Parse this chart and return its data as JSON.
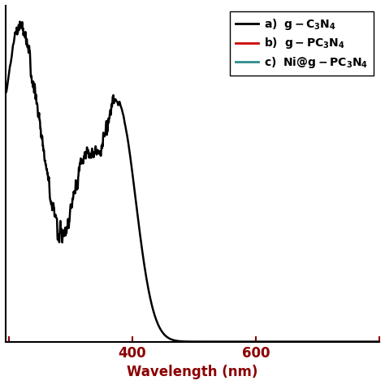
{
  "xlabel": "Wavelength (nm)",
  "xlabel_color": "#8B0000",
  "xtick_color": "#8B0000",
  "line_a_color": "#000000",
  "line_b_color": "#CC0000",
  "line_c_color": "#2E8B8B",
  "legend_a": "g-C₃N₄",
  "legend_b": "g-PC₃N₄",
  "legend_c": "Ni@g-PC₃N₄",
  "background_color": "#ffffff",
  "linewidth": 1.8,
  "legend_fontsize": 10,
  "axis_fontsize": 12,
  "xlim": [
    195,
    800
  ],
  "ylim": [
    0,
    1.05
  ]
}
